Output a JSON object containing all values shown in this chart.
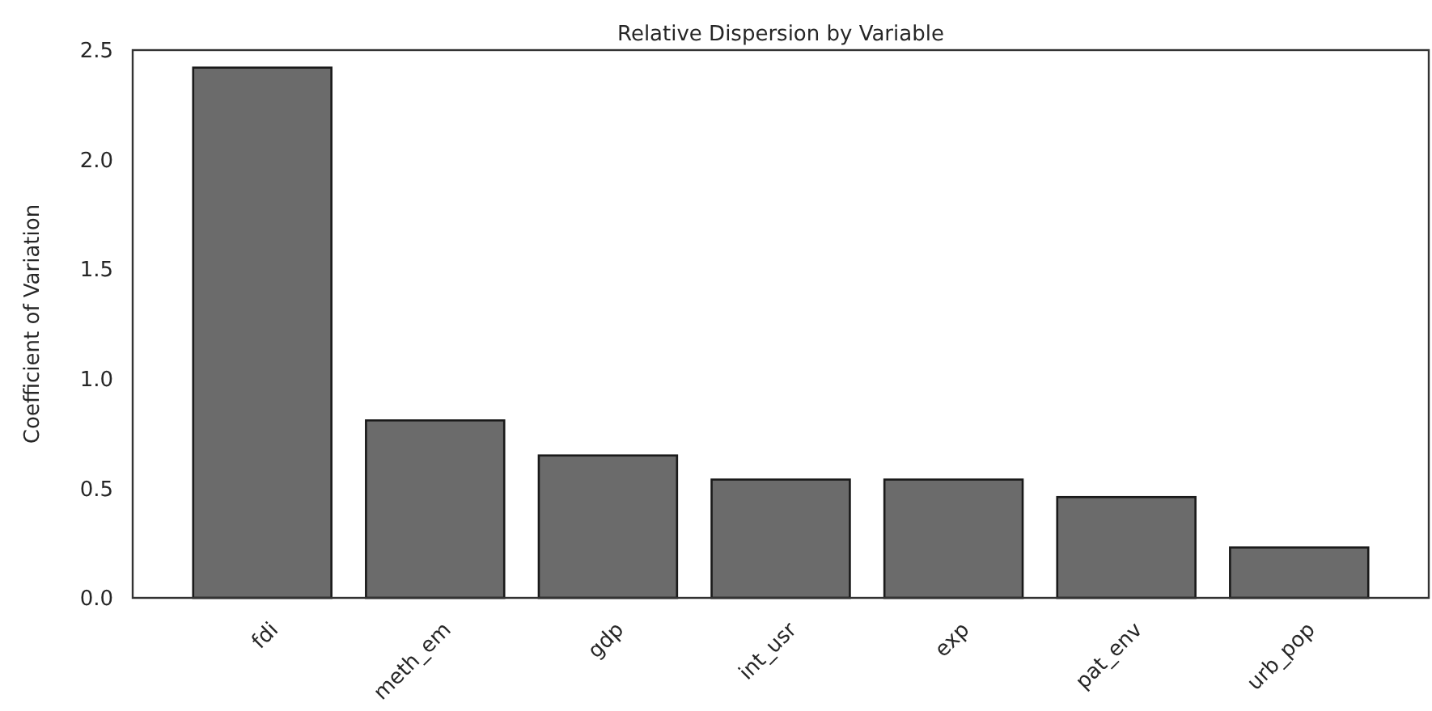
{
  "chart_data": {
    "type": "bar",
    "title": "Relative Dispersion by Variable",
    "ylabel": "Coefficient of Variation",
    "categories": [
      "fdi",
      "meth_em",
      "gdp",
      "int_usr",
      "exp",
      "pat_env",
      "urb_pop"
    ],
    "values": [
      2.42,
      0.81,
      0.65,
      0.54,
      0.54,
      0.46,
      0.23
    ],
    "color": "#6b6b6b",
    "ylim": [
      0,
      2.5
    ],
    "yticks": [
      {
        "value": 0,
        "label": "0.0"
      },
      {
        "value": 0.5,
        "label": "0.5"
      },
      {
        "value": 1,
        "label": "1.0"
      },
      {
        "value": 1.5,
        "label": "1.5"
      },
      {
        "value": 2,
        "label": "2.0"
      },
      {
        "value": 2.5,
        "label": "2.5"
      }
    ]
  }
}
